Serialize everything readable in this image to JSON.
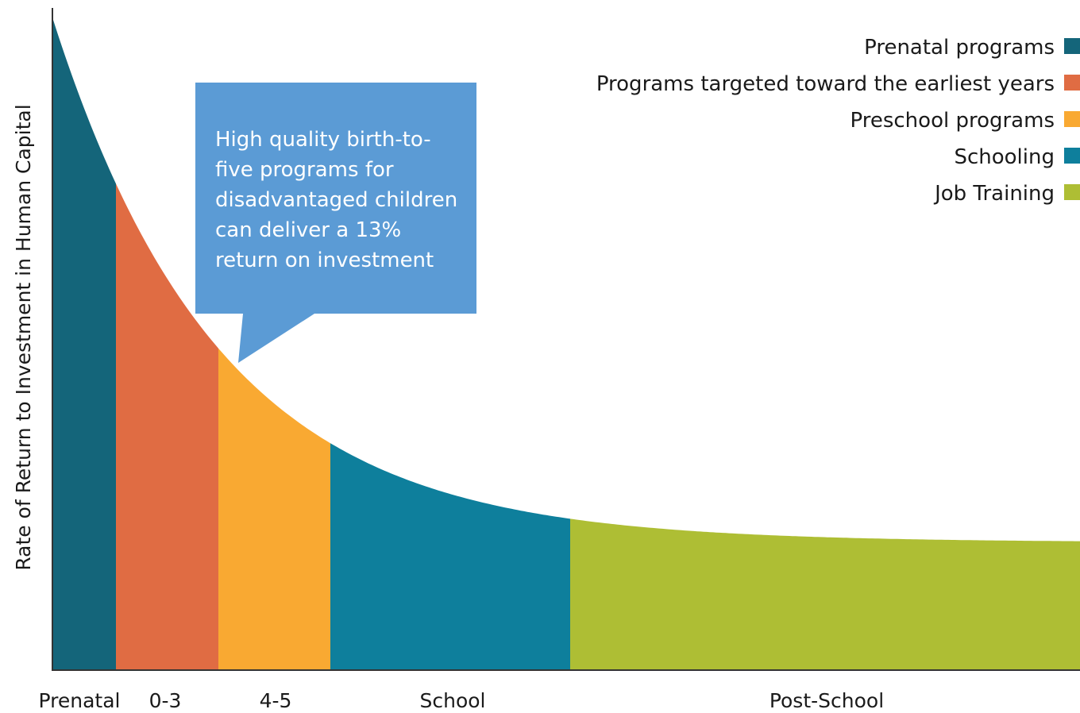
{
  "chart_data": {
    "type": "area",
    "title": "",
    "xlabel": "",
    "ylabel": "Rate of Return to Investment in Human Capital",
    "x_tick_labels": [
      "Prenatal",
      "0-3",
      "4-5",
      "School",
      "Post-School"
    ],
    "stages": [
      {
        "name": "Prenatal programs",
        "label": "Prenatal",
        "color": "#14657a"
      },
      {
        "name": "Programs targeted toward the earliest years",
        "label": "0-3",
        "color": "#e06c43"
      },
      {
        "name": "Preschool programs",
        "label": "4-5",
        "color": "#f9a932"
      },
      {
        "name": "Schooling",
        "label": "School",
        "color": "#0e7f9c"
      },
      {
        "name": "Job Training",
        "label": "Post-School",
        "color": "#aebe34"
      }
    ],
    "curve": "decreasing",
    "y_axis_ticks": false,
    "grid": false,
    "legend_position": "top-right"
  },
  "callout": {
    "lines": [
      "High quality birth-to-",
      "five programs for",
      "disadvantaged children",
      "can deliver a 13%",
      "return on investment"
    ],
    "color": "#5b9bd5"
  }
}
